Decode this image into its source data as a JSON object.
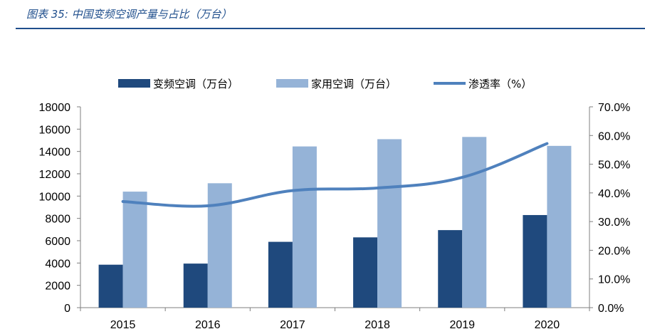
{
  "figure": {
    "title": "图表 35:  中国变频空调产量与占比（万台）",
    "rule_color": "#1f4e8c",
    "title_color": "#1f4e8c"
  },
  "chart_data": {
    "type": "bar",
    "categories": [
      "2015",
      "2016",
      "2017",
      "2018",
      "2019",
      "2020"
    ],
    "series": [
      {
        "name": "变频空调（万台）",
        "kind": "bar",
        "axis": "left",
        "color": "#1f497d",
        "values": [
          3850,
          3950,
          5900,
          6300,
          6950,
          8300
        ]
      },
      {
        "name": "家用空调（万台）",
        "kind": "bar",
        "axis": "left",
        "color": "#95b3d7",
        "values": [
          10400,
          11150,
          14450,
          15100,
          15300,
          14500
        ]
      },
      {
        "name": "渗透率（%）",
        "kind": "line",
        "axis": "right",
        "color": "#4f81bd",
        "values": [
          37.0,
          35.5,
          40.8,
          41.7,
          45.4,
          57.2
        ]
      }
    ],
    "y_left": {
      "ylim": [
        0,
        18000
      ],
      "ticks": [
        "0",
        "2000",
        "4000",
        "6000",
        "8000",
        "10000",
        "12000",
        "14000",
        "16000",
        "18000"
      ]
    },
    "y_right": {
      "ylim": [
        0,
        70
      ],
      "ticks": [
        "0.0%",
        "10.0%",
        "20.0%",
        "30.0%",
        "40.0%",
        "50.0%",
        "60.0%",
        "70.0%"
      ]
    },
    "legend_position": "top",
    "grid": false
  }
}
